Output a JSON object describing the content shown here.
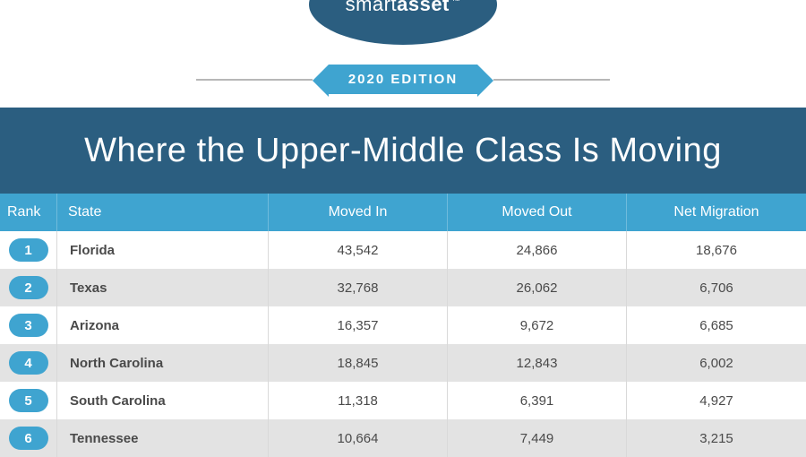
{
  "brand": {
    "prefix": "smart",
    "suffix": "asset",
    "tm": "™"
  },
  "edition_label": "2020 EDITION",
  "title": "Where the Upper-Middle Class Is Moving",
  "colors": {
    "brand_oval_bg": "#2b5e80",
    "ribbon_bg": "#3fa4d0",
    "hr": "#b7b7b7",
    "title_block_bg": "#2b5e80",
    "header_row_bg": "#3fa4d0",
    "row_even_bg": "#ffffff",
    "row_odd_bg": "#e3e3e3",
    "rank_pill_bg": "#3fa4d0",
    "text_dark": "#4a4a4a"
  },
  "table": {
    "columns": [
      "Rank",
      "State",
      "Moved In",
      "Moved Out",
      "Net Migration"
    ],
    "rows": [
      {
        "rank": "1",
        "state": "Florida",
        "moved_in": "43,542",
        "moved_out": "24,866",
        "net": "18,676"
      },
      {
        "rank": "2",
        "state": "Texas",
        "moved_in": "32,768",
        "moved_out": "26,062",
        "net": "6,706"
      },
      {
        "rank": "3",
        "state": "Arizona",
        "moved_in": "16,357",
        "moved_out": "9,672",
        "net": "6,685"
      },
      {
        "rank": "4",
        "state": "North Carolina",
        "moved_in": "18,845",
        "moved_out": "12,843",
        "net": "6,002"
      },
      {
        "rank": "5",
        "state": "South Carolina",
        "moved_in": "11,318",
        "moved_out": "6,391",
        "net": "4,927"
      },
      {
        "rank": "6",
        "state": "Tennessee",
        "moved_in": "10,664",
        "moved_out": "7,449",
        "net": "3,215"
      }
    ]
  }
}
